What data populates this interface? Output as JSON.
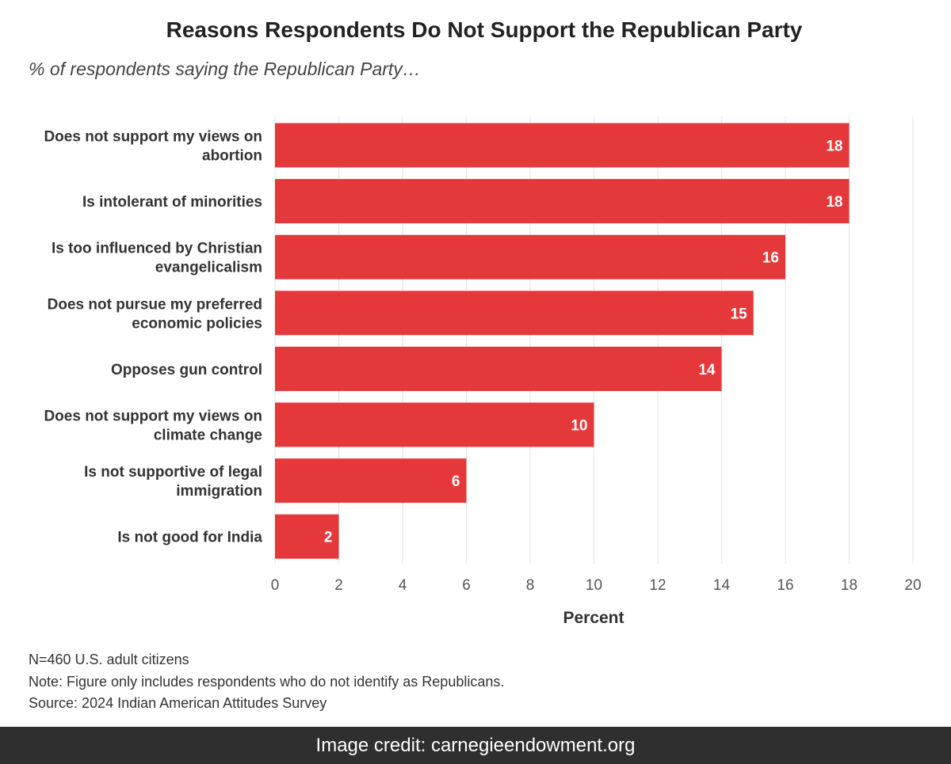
{
  "chart_data": {
    "type": "bar",
    "orientation": "horizontal",
    "title": "Reasons Respondents Do Not Support the Republican Party",
    "subtitle": "% of respondents saying the Republican Party…",
    "categories": [
      [
        "Does not support my views on",
        "abortion"
      ],
      [
        "Is intolerant of minorities"
      ],
      [
        "Is too influenced by Christian",
        "evangelicalism"
      ],
      [
        "Does not pursue my preferred",
        "economic policies"
      ],
      [
        "Opposes gun control"
      ],
      [
        "Does not support my views on",
        "climate change"
      ],
      [
        "Is not supportive of legal",
        "immigration"
      ],
      [
        "Is not good for India"
      ]
    ],
    "values": [
      18,
      18,
      16,
      15,
      14,
      10,
      6,
      2
    ],
    "xlabel": "Percent",
    "ylabel": "",
    "xlim": [
      0,
      20
    ],
    "xticks": [
      0,
      2,
      4,
      6,
      8,
      10,
      12,
      14,
      16,
      18,
      20
    ],
    "grid": true,
    "bar_color": "#e5383b",
    "label_color": "#ffffff"
  },
  "notes": [
    "N=460 U.S. adult citizens",
    "Note: Figure only includes respondents who do not identify as Republicans.",
    "Source: 2024 Indian American Attitudes Survey"
  ],
  "credit": "Image credit: carnegieendowment.org"
}
